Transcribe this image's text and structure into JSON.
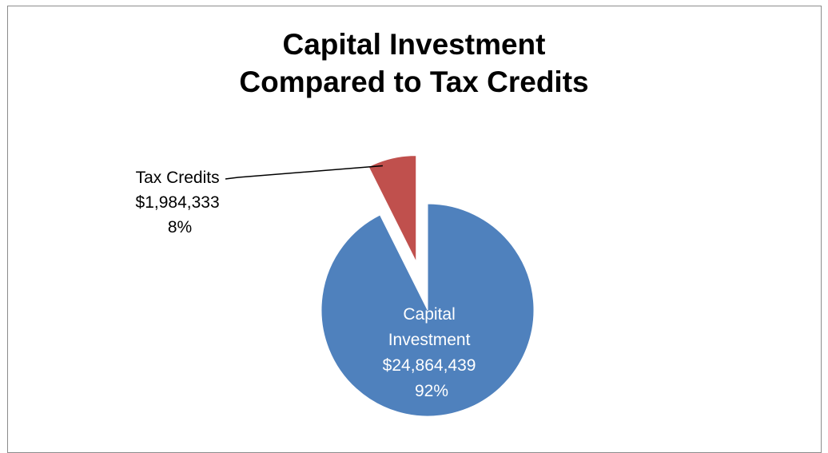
{
  "chart_data": {
    "type": "pie",
    "title": [
      "Capital Investment",
      "Compared to Tax Credits"
    ],
    "slices": [
      {
        "name": "Capital Investment",
        "value": 24864439,
        "value_label": "$24,864,439",
        "percent_label": "92%",
        "color": "#4f81bd",
        "label_color": "#ffffff",
        "exploded": false
      },
      {
        "name": "Tax Credits",
        "value": 1984333,
        "value_label": "$1,984,333",
        "percent_label": "8%",
        "color": "#c0504d",
        "label_color": "#000000",
        "exploded": true
      }
    ],
    "legend": "none",
    "data_labels": "category, value, percent"
  }
}
